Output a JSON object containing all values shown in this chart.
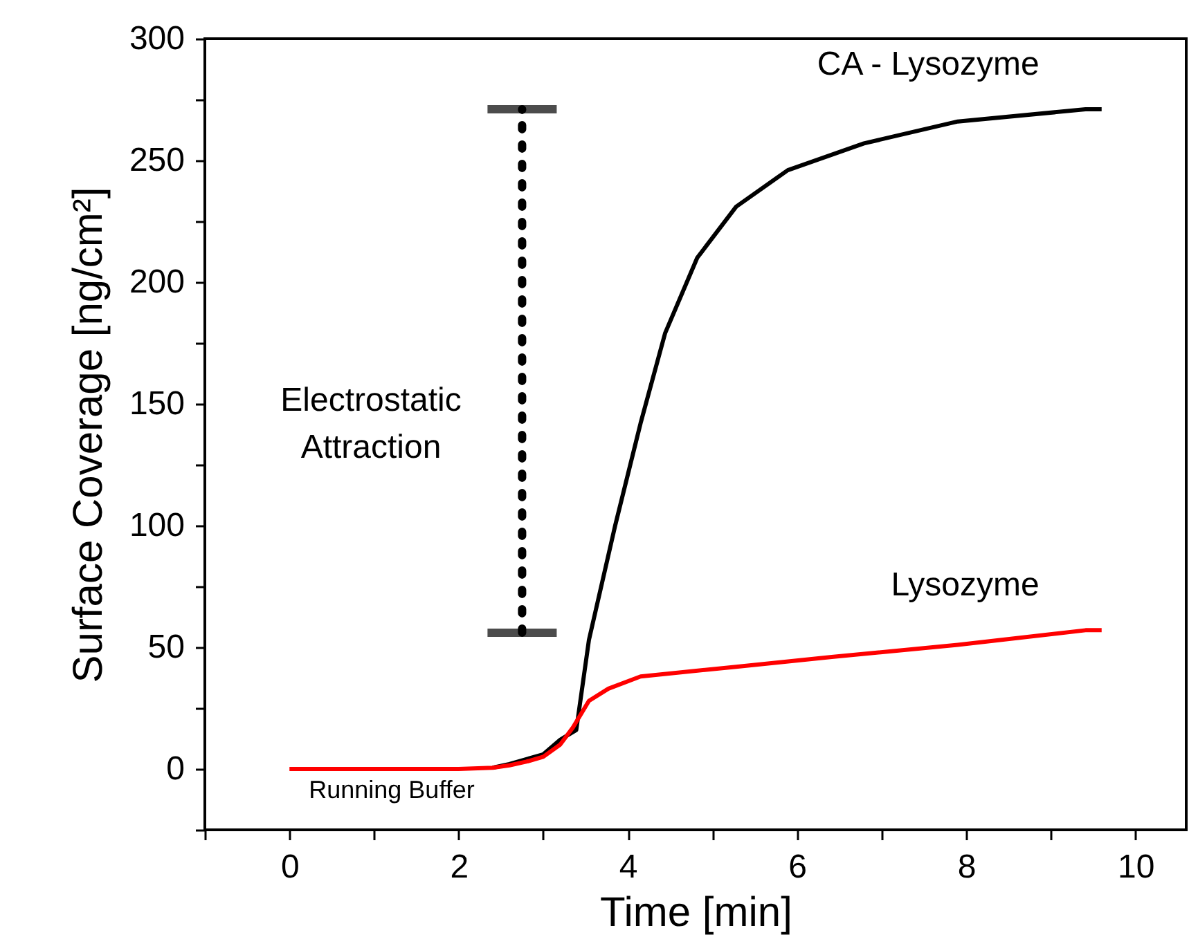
{
  "chart_data": {
    "type": "line",
    "xlabel": "Time [min]",
    "ylabel": "Surface Coverage [ng/cm²]",
    "xlim": [
      -1,
      10.6
    ],
    "xticks": [
      {
        "value": -1,
        "label": null
      },
      0,
      {
        "value": 1,
        "label": null
      },
      2,
      {
        "value": 3,
        "label": null
      },
      4,
      {
        "value": 5,
        "label": null
      },
      6,
      {
        "value": 7,
        "label": null
      },
      8,
      {
        "value": 9,
        "label": null
      },
      10
    ],
    "ylim": [
      -25,
      300
    ],
    "yticks": [
      {
        "value": -25,
        "label": null
      },
      0,
      {
        "value": 25,
        "label": null
      },
      50,
      {
        "value": 75,
        "label": null
      },
      100,
      {
        "value": 125,
        "label": null
      },
      150,
      {
        "value": 175,
        "label": null
      },
      200,
      {
        "value": 225,
        "label": null
      },
      250,
      {
        "value": 275,
        "label": null
      },
      300
    ],
    "grid": false,
    "series": [
      {
        "name": "CA - Lysozyme",
        "color": "#000000",
        "x": [
          2.4,
          2.6,
          2.8,
          3.0,
          3.2,
          3.39,
          3.54,
          3.85,
          4.15,
          4.44,
          4.82,
          5.28,
          5.89,
          6.79,
          7.9,
          9.41,
          9.6
        ],
        "values": [
          0.5,
          2,
          4,
          6,
          12,
          16,
          53,
          100,
          142,
          179,
          210,
          231,
          246,
          257,
          266,
          271,
          271
        ]
      },
      {
        "name": "Lysozyme",
        "color": "#ff0000",
        "x": [
          0,
          1,
          2,
          2.4,
          2.6,
          2.8,
          3.0,
          3.2,
          3.35,
          3.54,
          3.77,
          4.15,
          5.28,
          6.41,
          7.9,
          9.41,
          9.6
        ],
        "values": [
          0,
          0,
          0,
          0.5,
          1.5,
          3,
          5,
          10,
          17,
          28,
          33,
          38,
          42,
          46,
          51,
          57,
          57
        ]
      },
      {
        "type": "line",
        "line_style": "dotted",
        "color": "#000000",
        "x": [
          2.75,
          2.75
        ],
        "values": [
          56,
          271
        ]
      }
    ],
    "annotations": [
      "Electrostatic\nAttraction",
      "Running Buffer"
    ]
  }
}
